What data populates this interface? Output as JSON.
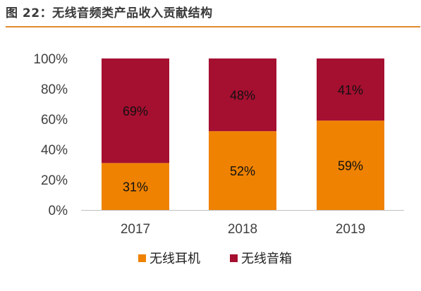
{
  "title": "图 22：无线音频类产品收入贡献结构",
  "chart_data": {
    "type": "bar",
    "stacked": true,
    "categories": [
      "2017",
      "2018",
      "2019"
    ],
    "series": [
      {
        "name": "无线耳机",
        "values": [
          31,
          52,
          59
        ],
        "labels": [
          "31%",
          "52%",
          "59%"
        ],
        "color": "#ef8200"
      },
      {
        "name": "无线音箱",
        "values": [
          69,
          48,
          41
        ],
        "labels": [
          "69%",
          "48%",
          "41%"
        ],
        "color": "#a50f30"
      }
    ],
    "ylim": [
      0,
      100
    ],
    "yticks": [
      "0%",
      "20%",
      "40%",
      "60%",
      "80%",
      "100%"
    ],
    "grid": false,
    "legend": "bottom"
  }
}
